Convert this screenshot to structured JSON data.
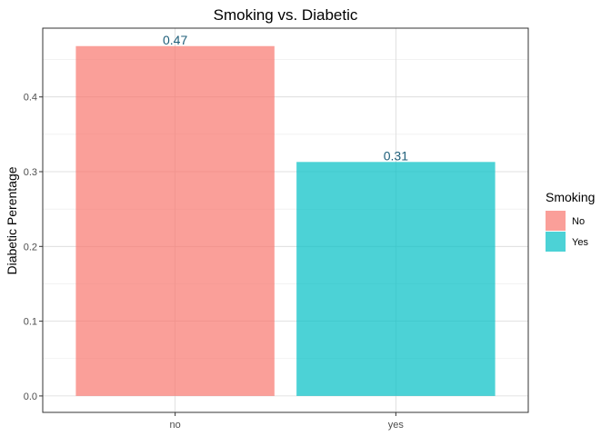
{
  "chart_data": {
    "type": "bar",
    "title": "Smoking vs. Diabetic",
    "xlabel": "",
    "ylabel": "Diabetic Perentage",
    "categories": [
      "no",
      "yes"
    ],
    "values": [
      0.468,
      0.313
    ],
    "data_labels": [
      "0.47",
      "0.31"
    ],
    "ylim": [
      -0.022,
      0.492
    ],
    "yticks": [
      0.0,
      0.1,
      0.2,
      0.3,
      0.4
    ],
    "ytick_labels": [
      "0.0",
      "0.1",
      "0.2",
      "0.3",
      "0.4"
    ],
    "grid": true,
    "legend": {
      "title": "Smoking",
      "placement": "right",
      "entries": [
        {
          "label": "No",
          "color": "#f8766d"
        },
        {
          "label": "Yes",
          "color": "#00bfc4"
        }
      ]
    },
    "bar_colors": [
      "#f8766d",
      "#00bfc4"
    ],
    "bar_opacity": 0.7,
    "value_label_color": "#1f5f7a"
  }
}
